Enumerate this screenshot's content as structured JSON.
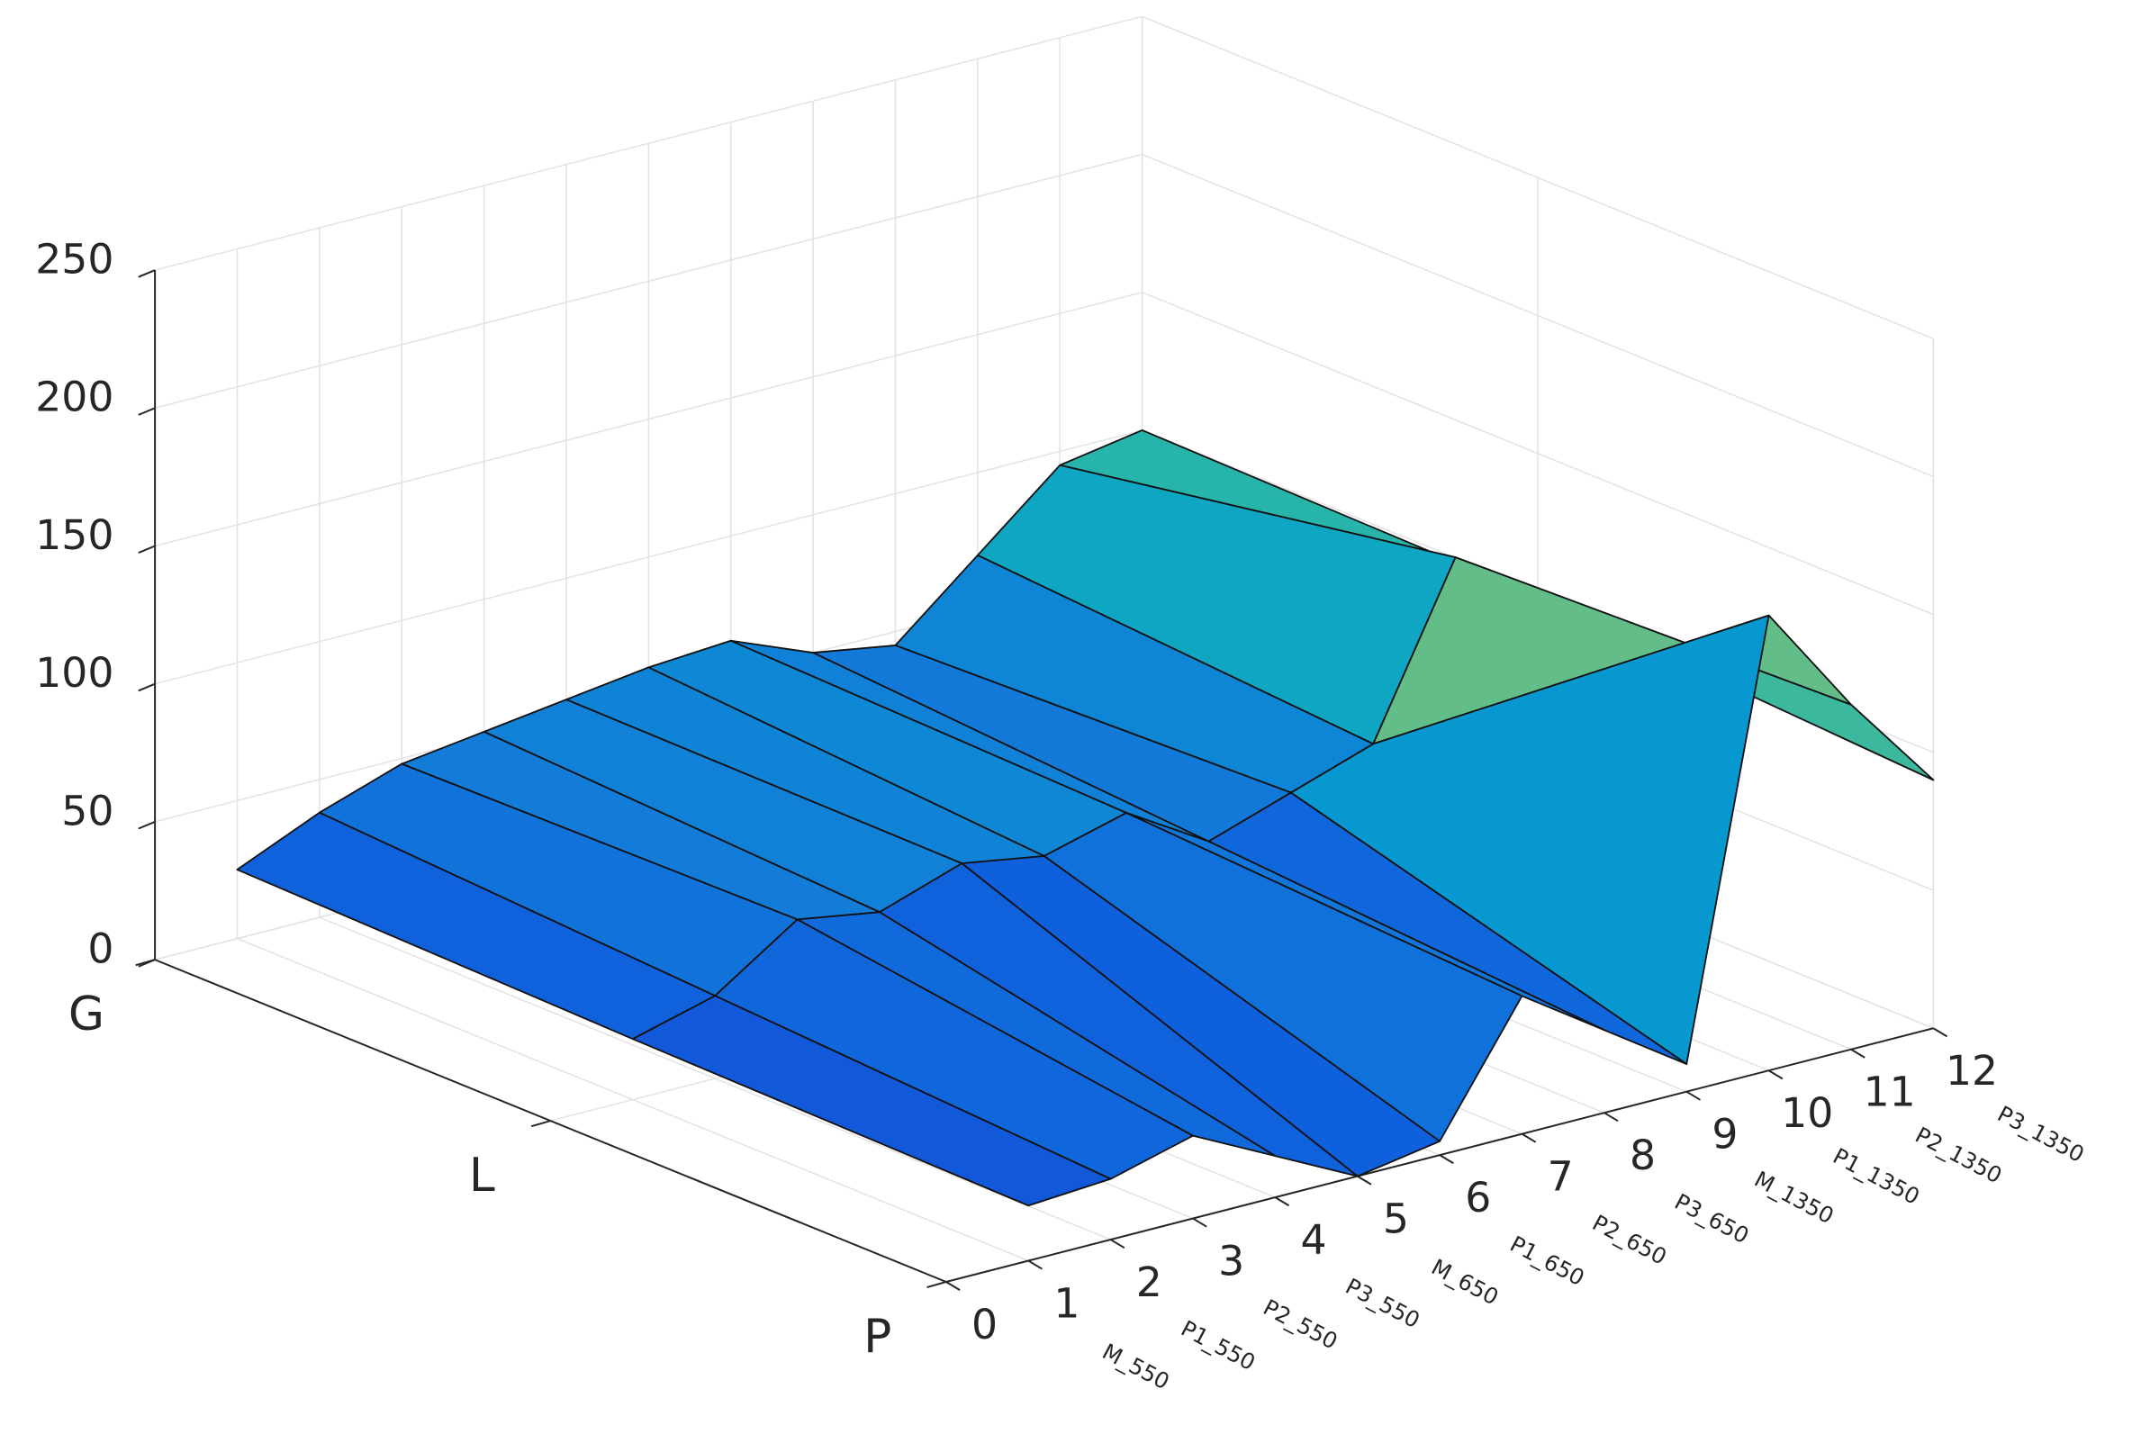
{
  "chart_data": {
    "type": "surface",
    "x": [
      1,
      2,
      3,
      4,
      5,
      6,
      7,
      8,
      9,
      10,
      11,
      12
    ],
    "x_labels": [
      "M_550",
      "P1_550",
      "P2_550",
      "P3_550",
      "M_650",
      "P1_650",
      "P2_650",
      "P3_650",
      "M_1350",
      "P1_1350",
      "P2_1350",
      "P3_1350"
    ],
    "xlim": [
      0,
      12
    ],
    "xticks": [
      0,
      1,
      2,
      3,
      4,
      5,
      6,
      7,
      8,
      9,
      10,
      11,
      12
    ],
    "y_categories": [
      "G",
      "L",
      "P"
    ],
    "z": [
      [
        25,
        38,
        48,
        52,
        56,
        60,
        62,
        50,
        45,
        70,
        95,
        100
      ],
      [
        22,
        30,
        50,
        45,
        55,
        50,
        58,
        40,
        50,
        60,
        120,
        98
      ],
      [
        20,
        22,
        30,
        15,
        0,
        5,
        50,
        30,
        10,
        165,
        125,
        90
      ]
    ],
    "zlim": [
      0,
      250
    ],
    "zticks": [
      0,
      50,
      100,
      150,
      200,
      250
    ],
    "colormap": "parula",
    "grid": true
  }
}
